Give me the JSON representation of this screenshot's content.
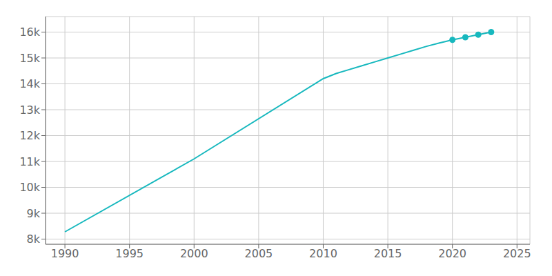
{
  "chart_data": {
    "type": "line",
    "x": [
      1990,
      2000,
      2010,
      2011,
      2012,
      2013,
      2014,
      2015,
      2016,
      2017,
      2018,
      2019,
      2020,
      2021,
      2022,
      2023
    ],
    "series": [
      {
        "type": "line",
        "color": "#17B8BE",
        "values": [
          8280,
          11100,
          14200,
          14400,
          14550,
          14700,
          14850,
          15000,
          15150,
          15300,
          15450,
          15580,
          15700,
          15800,
          15900,
          16000
        ]
      },
      {
        "type": "scatter",
        "marker": "circle",
        "color": "#17B8BE",
        "values": [
          null,
          null,
          null,
          null,
          null,
          null,
          null,
          null,
          null,
          null,
          null,
          null,
          15700,
          15800,
          15900,
          16000
        ]
      }
    ],
    "xlim": [
      1988.5,
      2026
    ],
    "xticks": [
      1990,
      1995,
      2000,
      2005,
      2010,
      2015,
      2020,
      2025
    ],
    "ylim": [
      7800,
      16600
    ],
    "yticks": [
      {
        "value": 8000,
        "label": "8k"
      },
      {
        "value": 9000,
        "label": "9k"
      },
      {
        "value": 10000,
        "label": "10k"
      },
      {
        "value": 11000,
        "label": "11k"
      },
      {
        "value": 12000,
        "label": "12k"
      },
      {
        "value": 13000,
        "label": "13k"
      },
      {
        "value": 14000,
        "label": "14k"
      },
      {
        "value": 15000,
        "label": "15k"
      },
      {
        "value": 16000,
        "label": "16k"
      }
    ],
    "grid": true
  }
}
